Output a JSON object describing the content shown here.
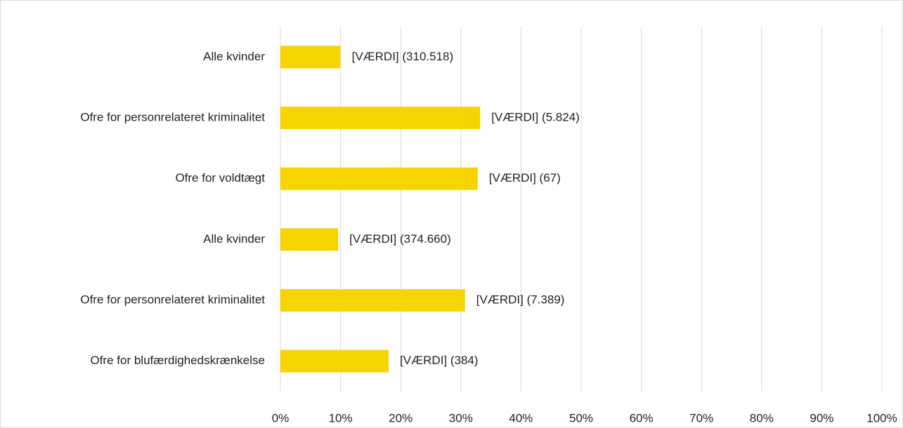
{
  "chart_data": {
    "type": "bar",
    "orientation": "horizontal",
    "categories": [
      "Alle kvinder",
      "Ofre for personrelateret kriminalitet",
      "Ofre for voldtægt",
      "Alle kvinder",
      "Ofre for personrelateret kriminalitet",
      "Ofre for blufærdighedskrænkelse"
    ],
    "values": [
      10,
      33.2,
      32.8,
      9.6,
      30.7,
      18
    ],
    "value_labels": [
      "[VÆRDI] (310.518)",
      "[VÆRDI] (5.824)",
      "[VÆRDI] (67)",
      "[VÆRDI] (374.660)",
      "[VÆRDI] (7.389)",
      "[VÆRDI] (384)"
    ],
    "color": "#f5d400",
    "xlim": [
      0,
      100
    ],
    "xticks": [
      {
        "value": 0,
        "label": "0%"
      },
      {
        "value": 10,
        "label": "10%"
      },
      {
        "value": 20,
        "label": "20%"
      },
      {
        "value": 30,
        "label": "30%"
      },
      {
        "value": 40,
        "label": "40%"
      },
      {
        "value": 50,
        "label": "50%"
      },
      {
        "value": 60,
        "label": "60%"
      },
      {
        "value": 70,
        "label": "70%"
      },
      {
        "value": 80,
        "label": "80%"
      },
      {
        "value": 90,
        "label": "90%"
      },
      {
        "value": 100,
        "label": "100%"
      }
    ],
    "grid": true
  }
}
